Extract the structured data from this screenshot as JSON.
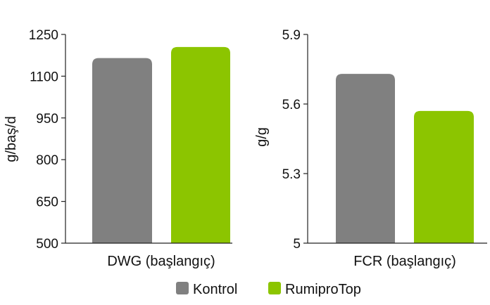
{
  "chart_data": [
    {
      "type": "bar",
      "categories": [
        "DWG (başlangıç)"
      ],
      "series": [
        {
          "name": "Kontrol",
          "values": [
            1165
          ]
        },
        {
          "name": "RumiproTop",
          "values": [
            1205
          ]
        }
      ],
      "ylabel": "g/baş/d",
      "ylim": [
        500,
        1250
      ],
      "yticks": [
        "500",
        "650",
        "800",
        "950",
        "1100",
        "1250"
      ],
      "ytick_values": [
        500,
        650,
        800,
        950,
        1100,
        1250
      ],
      "grid": false
    },
    {
      "type": "bar",
      "categories": [
        "FCR (başlangıç)"
      ],
      "series": [
        {
          "name": "Kontrol",
          "values": [
            5.73
          ]
        },
        {
          "name": "RumiproTop",
          "values": [
            5.57
          ]
        }
      ],
      "ylabel": "g/g",
      "ylim": [
        5.0,
        5.9
      ],
      "yticks": [
        "5",
        "5.3",
        "5.6",
        "5.9"
      ],
      "ytick_values": [
        5.0,
        5.3,
        5.6,
        5.9
      ],
      "grid": false
    }
  ],
  "legend": {
    "placement": "bottom-center",
    "items": [
      {
        "label": "Kontrol",
        "color": "#808080"
      },
      {
        "label": "RumiproTop",
        "color": "#8cc500"
      }
    ]
  },
  "colors": {
    "axis": "#222222",
    "text": "#111111"
  }
}
